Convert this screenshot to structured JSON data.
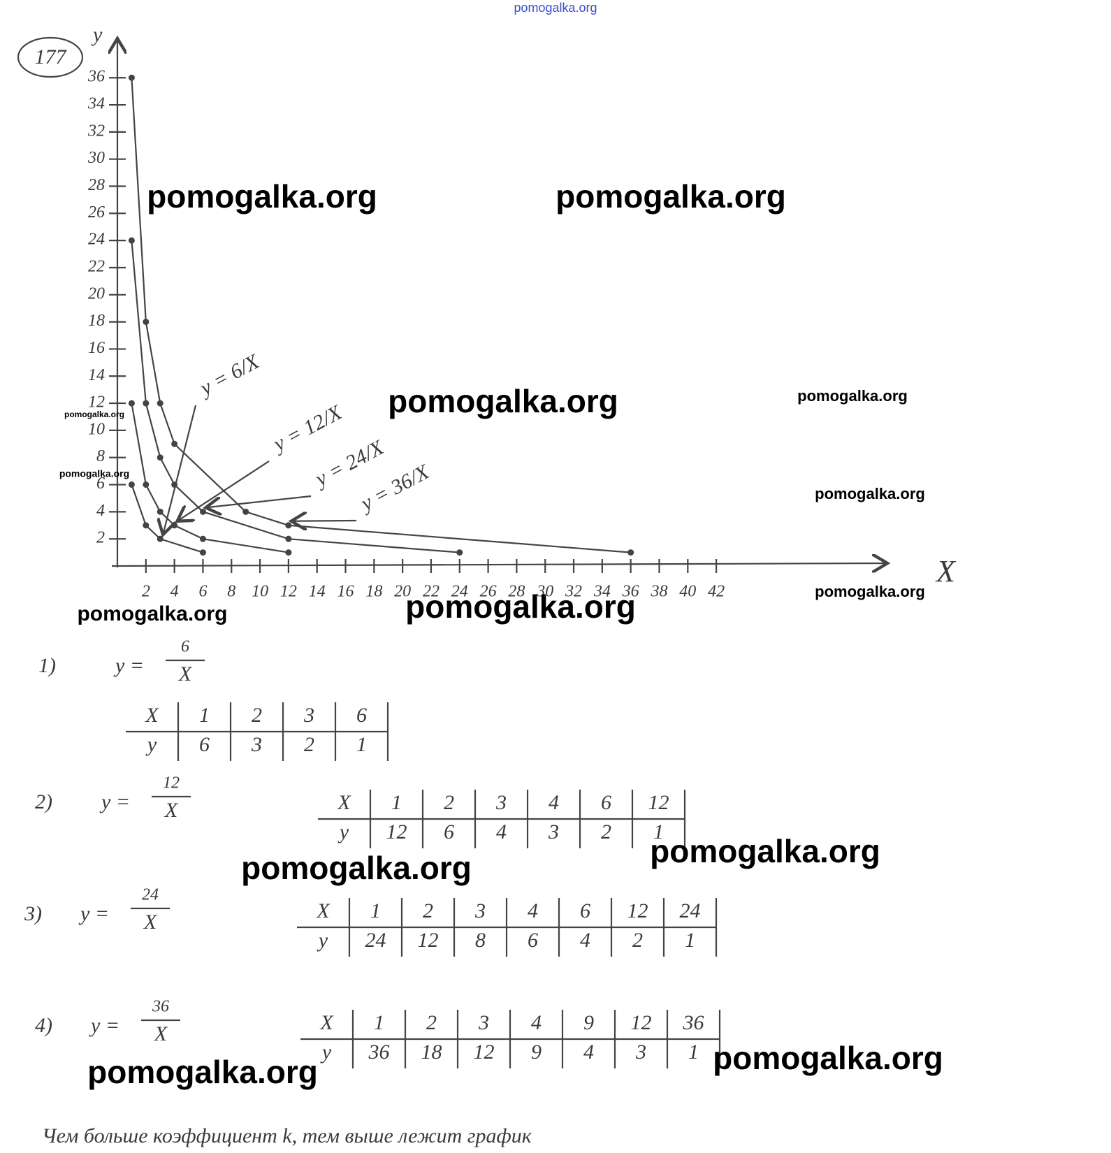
{
  "header": {
    "task_number": "177"
  },
  "chart_data": {
    "type": "line",
    "x_label": "X",
    "y_label": "y",
    "xlim": [
      0,
      54
    ],
    "ylim": [
      0,
      39
    ],
    "xticks": [
      2,
      4,
      6,
      8,
      10,
      12,
      14,
      16,
      18,
      20,
      22,
      24,
      26,
      28,
      30,
      32,
      34,
      36,
      38,
      40,
      42
    ],
    "yticks": [
      2,
      4,
      6,
      8,
      10,
      12,
      14,
      16,
      18,
      20,
      22,
      24,
      26,
      28,
      30,
      32,
      34,
      36
    ],
    "series": [
      {
        "name": "y = 6/X",
        "color": "#444444",
        "x": [
          1,
          2,
          3,
          6
        ],
        "values": [
          6,
          3,
          2,
          1
        ]
      },
      {
        "name": "y = 12/X",
        "color": "#444444",
        "x": [
          1,
          2,
          3,
          4,
          6,
          12
        ],
        "values": [
          12,
          6,
          4,
          3,
          2,
          1
        ]
      },
      {
        "name": "y = 24/X",
        "color": "#444444",
        "x": [
          1,
          2,
          3,
          4,
          6,
          12,
          24
        ],
        "values": [
          24,
          12,
          8,
          6,
          4,
          2,
          1
        ]
      },
      {
        "name": "y = 36/X",
        "color": "#444444",
        "x": [
          1,
          2,
          3,
          4,
          9,
          12,
          36
        ],
        "values": [
          36,
          18,
          12,
          9,
          4,
          3,
          1
        ]
      }
    ]
  },
  "tables": [
    {
      "label": "1)",
      "lhs": "y =",
      "numerator": "6",
      "denominator": "X",
      "x_header": "X",
      "y_header": "y",
      "x": [
        "1",
        "2",
        "3",
        "6"
      ],
      "y": [
        "6",
        "3",
        "2",
        "1"
      ]
    },
    {
      "label": "2)",
      "lhs": "y =",
      "numerator": "12",
      "denominator": "X",
      "x_header": "X",
      "y_header": "y",
      "x": [
        "1",
        "2",
        "3",
        "4",
        "6",
        "12"
      ],
      "y": [
        "12",
        "6",
        "4",
        "3",
        "2",
        "1"
      ]
    },
    {
      "label": "3)",
      "lhs": "y =",
      "numerator": "24",
      "denominator": "X",
      "x_header": "X",
      "y_header": "y",
      "x": [
        "1",
        "2",
        "3",
        "4",
        "6",
        "12",
        "24"
      ],
      "y": [
        "24",
        "12",
        "8",
        "6",
        "4",
        "2",
        "1"
      ]
    },
    {
      "label": "4)",
      "lhs": "y =",
      "numerator": "36",
      "denominator": "X",
      "x_header": "X",
      "y_header": "y",
      "x": [
        "1",
        "2",
        "3",
        "4",
        "9",
        "12",
        "36"
      ],
      "y": [
        "36",
        "18",
        "12",
        "9",
        "4",
        "3",
        "1"
      ]
    }
  ],
  "conclusion": "Чем больше коэффициент k, тем выше лежит график",
  "watermarks": [
    "pomogalka.org",
    "pomogalka.org",
    "pomogalka.org",
    "pomogalka.org",
    "pomogalka.org",
    "pomogalka.org",
    "pomogalka.org",
    "pomogalka.org",
    "pomogalka.org",
    "pomogalka.org",
    "pomogalka.org",
    "pomogalka.org",
    "pomogalka.org",
    "pomogalka.org",
    "pomogalka.org"
  ]
}
